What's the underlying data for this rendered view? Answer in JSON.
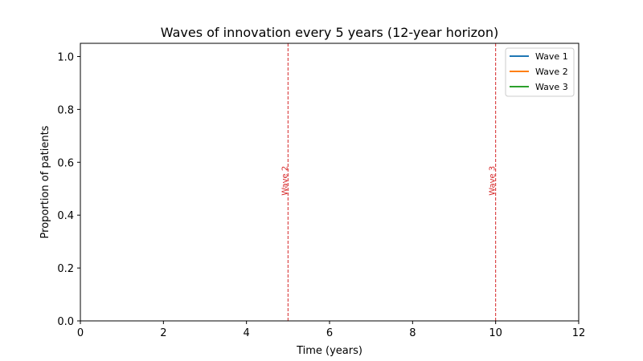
{
  "chart_data": {
    "type": "line",
    "title": "Waves of innovation every 5 years (12-year horizon)",
    "xlabel": "Time (years)",
    "ylabel": "Proportion of patients",
    "xlim": [
      0,
      12
    ],
    "ylim": [
      0,
      1.05
    ],
    "xticks": [
      0,
      2,
      4,
      6,
      8,
      10,
      12
    ],
    "xtick_labels": [
      "0",
      "2",
      "4",
      "6",
      "8",
      "10",
      "12"
    ],
    "yticks": [
      0,
      0.2,
      0.4,
      0.6,
      0.8,
      1.0
    ],
    "ytick_labels": [
      "0.0",
      "0.2",
      "0.4",
      "0.6",
      "0.8",
      "1.0"
    ],
    "grid": false,
    "legend_position": "top-right",
    "series": [
      {
        "name": "Wave 1",
        "color": "#1f77b4",
        "x": [],
        "y": []
      },
      {
        "name": "Wave 2",
        "color": "#ff7f0e",
        "x": [],
        "y": []
      },
      {
        "name": "Wave 3",
        "color": "#2ca02c",
        "x": [],
        "y": []
      }
    ],
    "vlines": [
      {
        "x": 5,
        "label": "Wave 2",
        "color": "#d62728",
        "style": "dashed"
      },
      {
        "x": 10,
        "label": "Wave 3",
        "color": "#d62728",
        "style": "dashed"
      }
    ]
  }
}
